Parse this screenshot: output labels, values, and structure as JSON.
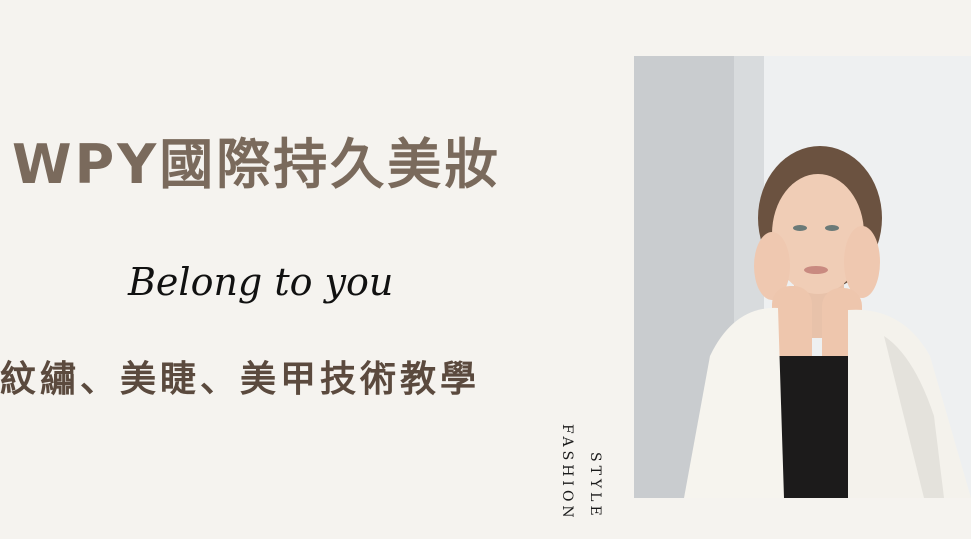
{
  "banner": {
    "title": "WPY國際持久美妝",
    "tagline": "Belong to you",
    "services": "紋繡、美睫、美甲技術教學",
    "vertical_text": {
      "line1": "FASHION",
      "line2": "STYLE"
    }
  },
  "photo": {
    "icon": "portrait-photo-icon"
  },
  "colors": {
    "background": "#f5f3ef",
    "title": "#7a6a5c",
    "services": "#5b4a3e",
    "tagline": "#111111"
  }
}
